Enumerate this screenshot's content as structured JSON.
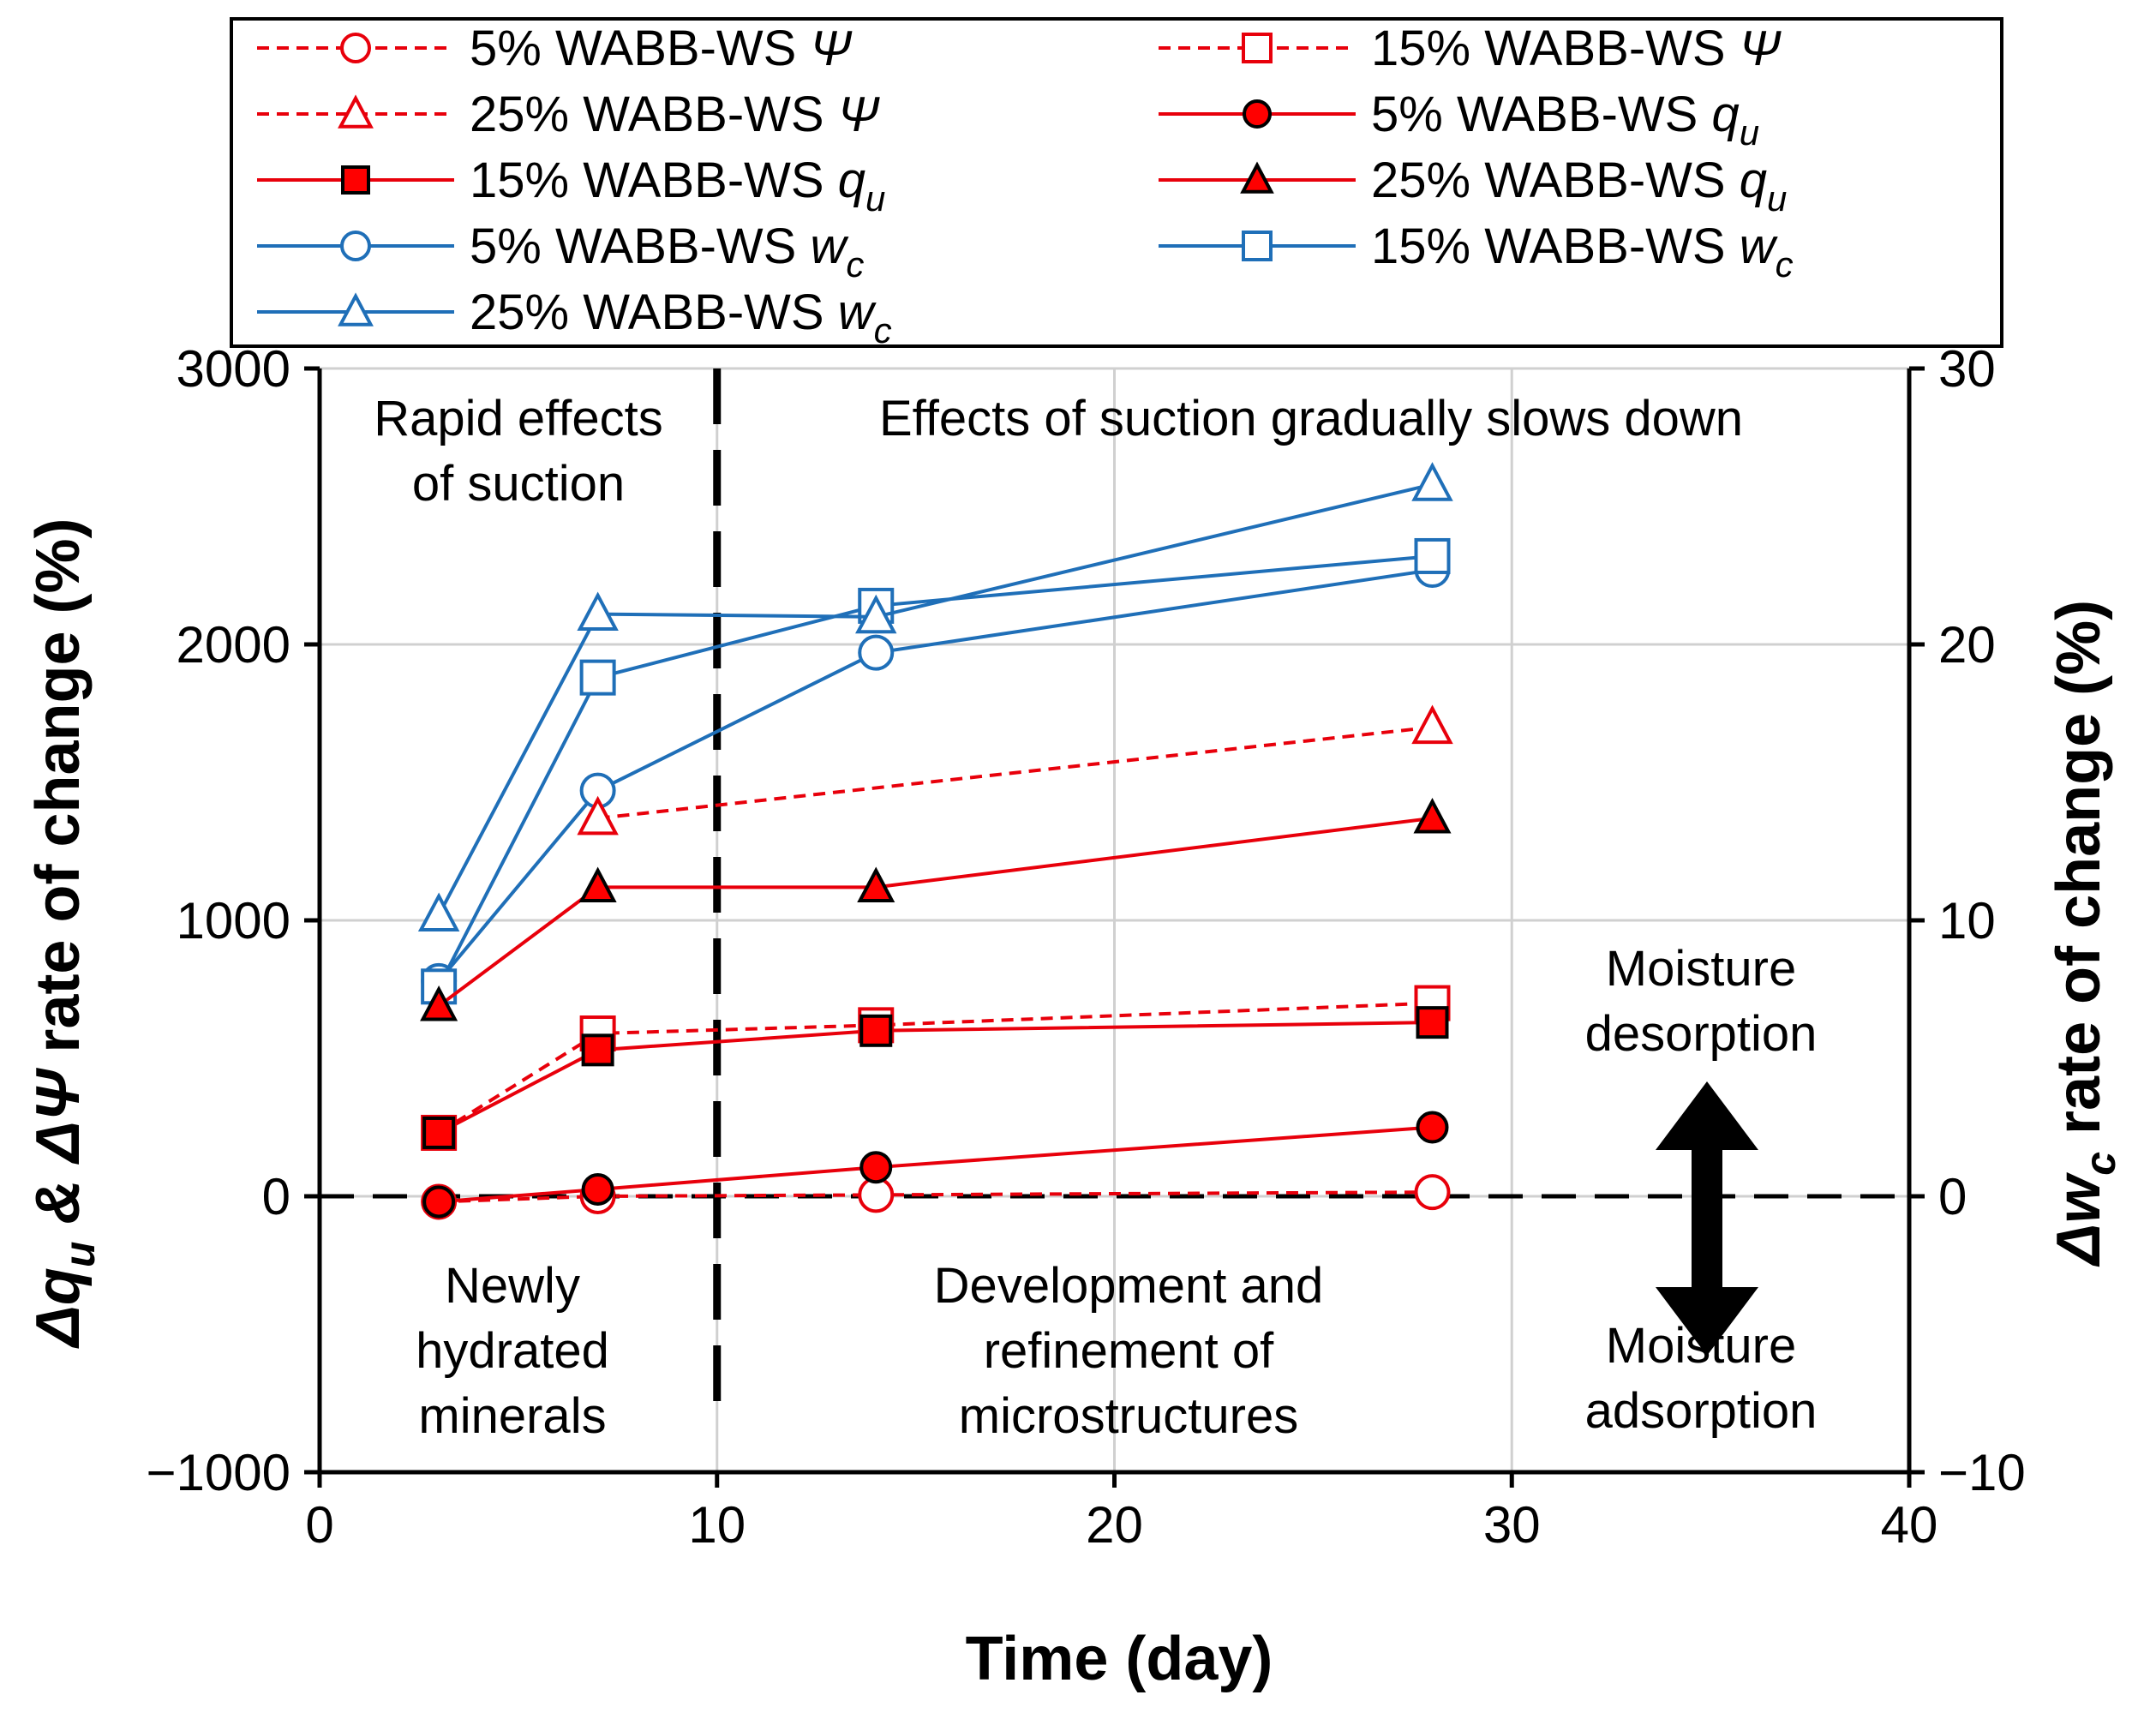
{
  "chart_data": {
    "type": "line",
    "xlabel": "Time (day)",
    "ylabel": {
      "prefix": "Δq",
      "sub": "u",
      "mid": " & ΔΨ",
      "suffix": " rate of change (%)"
    },
    "y2label": {
      "prefix": "Δw",
      "sub": "c",
      "suffix": " rate of change (%)"
    },
    "xlim": [
      0,
      40
    ],
    "ylim": [
      -1000,
      3000
    ],
    "y2lim": [
      -10,
      30
    ],
    "xticks": [
      0,
      10,
      20,
      30,
      40
    ],
    "yticks": [
      -1000,
      0,
      1000,
      2000,
      3000
    ],
    "y2ticks": [
      -10,
      0,
      10,
      20,
      30
    ],
    "xtick_labels": [
      "0",
      "10",
      "20",
      "30",
      "40"
    ],
    "ytick_labels": [
      "−1000",
      "0",
      "1000",
      "2000",
      "3000"
    ],
    "y2tick_labels": [
      "−10",
      "0",
      "10",
      "20",
      "30"
    ],
    "grid": true,
    "divider_x": 10,
    "zero_line_y": 0,
    "colors": {
      "red": "#e8000b",
      "blue": "#1f6fb8",
      "red_fill": "#ff0000"
    },
    "series": [
      {
        "name": "5% WABB-WS Ψ",
        "pct": "5%",
        "label": "WABB-WS",
        "sym": "Ψ",
        "sub": "",
        "axis": "left",
        "color": "red",
        "dash": true,
        "marker": "circle",
        "filled": false,
        "x": [
          3,
          7,
          14,
          28
        ],
        "y": [
          -20,
          0,
          5,
          15
        ]
      },
      {
        "name": "15% WABB-WS Ψ",
        "pct": "15%",
        "label": "WABB-WS",
        "sym": "Ψ",
        "sub": "",
        "axis": "left",
        "color": "red",
        "dash": true,
        "marker": "square",
        "filled": false,
        "x": [
          3,
          7,
          14,
          28
        ],
        "y": [
          230,
          590,
          620,
          700
        ]
      },
      {
        "name": "25% WABB-WS Ψ",
        "pct": "25%",
        "label": "WABB-WS",
        "sym": "Ψ",
        "sub": "",
        "axis": "left",
        "color": "red",
        "dash": true,
        "marker": "triangle",
        "filled": false,
        "x": [
          7,
          28
        ],
        "y": [
          1370,
          1700
        ]
      },
      {
        "name": "5% WABB-WS qu",
        "pct": "5%",
        "label": "WABB-WS",
        "sym": "q",
        "sub": "u",
        "axis": "left",
        "color": "red",
        "dash": false,
        "marker": "circle",
        "filled": true,
        "x": [
          3,
          7,
          14,
          28
        ],
        "y": [
          -20,
          25,
          105,
          250
        ]
      },
      {
        "name": "15% WABB-WS qu",
        "pct": "15%",
        "label": "WABB-WS",
        "sym": "q",
        "sub": "u",
        "axis": "left",
        "color": "red",
        "dash": false,
        "marker": "square",
        "filled": true,
        "x": [
          3,
          7,
          14,
          28
        ],
        "y": [
          230,
          530,
          600,
          630
        ]
      },
      {
        "name": "25% WABB-WS qu",
        "pct": "25%",
        "label": "WABB-WS",
        "sym": "q",
        "sub": "u",
        "axis": "left",
        "color": "red",
        "dash": false,
        "marker": "triangle",
        "filled": true,
        "x": [
          3,
          7,
          14,
          28
        ],
        "y": [
          690,
          1120,
          1120,
          1370
        ]
      },
      {
        "name": "5% WABB-WS wc",
        "pct": "5%",
        "label": "WABB-WS",
        "sym": "w",
        "sub": "c",
        "axis": "right",
        "color": "blue",
        "dash": false,
        "marker": "circle",
        "filled": false,
        "x": [
          3,
          7,
          14,
          28
        ],
        "y": [
          7.8,
          14.7,
          19.7,
          22.7
        ]
      },
      {
        "name": "15% WABB-WS wc",
        "pct": "15%",
        "label": "WABB-WS",
        "sym": "w",
        "sub": "c",
        "axis": "right",
        "color": "blue",
        "dash": false,
        "marker": "square",
        "filled": false,
        "x": [
          3,
          7,
          14,
          28
        ],
        "y": [
          7.6,
          18.8,
          21.4,
          23.2
        ]
      },
      {
        "name": "25% WABB-WS wc",
        "pct": "25%",
        "label": "WABB-WS",
        "sym": "w",
        "sub": "c",
        "axis": "right",
        "color": "blue",
        "dash": false,
        "marker": "triangle",
        "filled": false,
        "x": [
          3,
          7,
          14,
          28
        ],
        "y": [
          10.2,
          21.1,
          21.0,
          25.8
        ]
      }
    ],
    "legend_order": [
      0,
      1,
      2,
      3,
      4,
      5,
      6,
      7,
      8
    ],
    "legend_position": "top",
    "annotations": {
      "rapid_1": "Rapid effects",
      "rapid_2": "of suction",
      "slow": "Effects of suction gradually slows down",
      "newly_1": "Newly",
      "newly_2": "hydrated",
      "newly_3": "minerals",
      "dev_1": "Development and",
      "dev_2": "refinement of",
      "dev_3": "microstructures",
      "des_1": "Moisture",
      "des_2": "desorption",
      "ads_1": "Moisture",
      "ads_2": "adsorption"
    }
  }
}
